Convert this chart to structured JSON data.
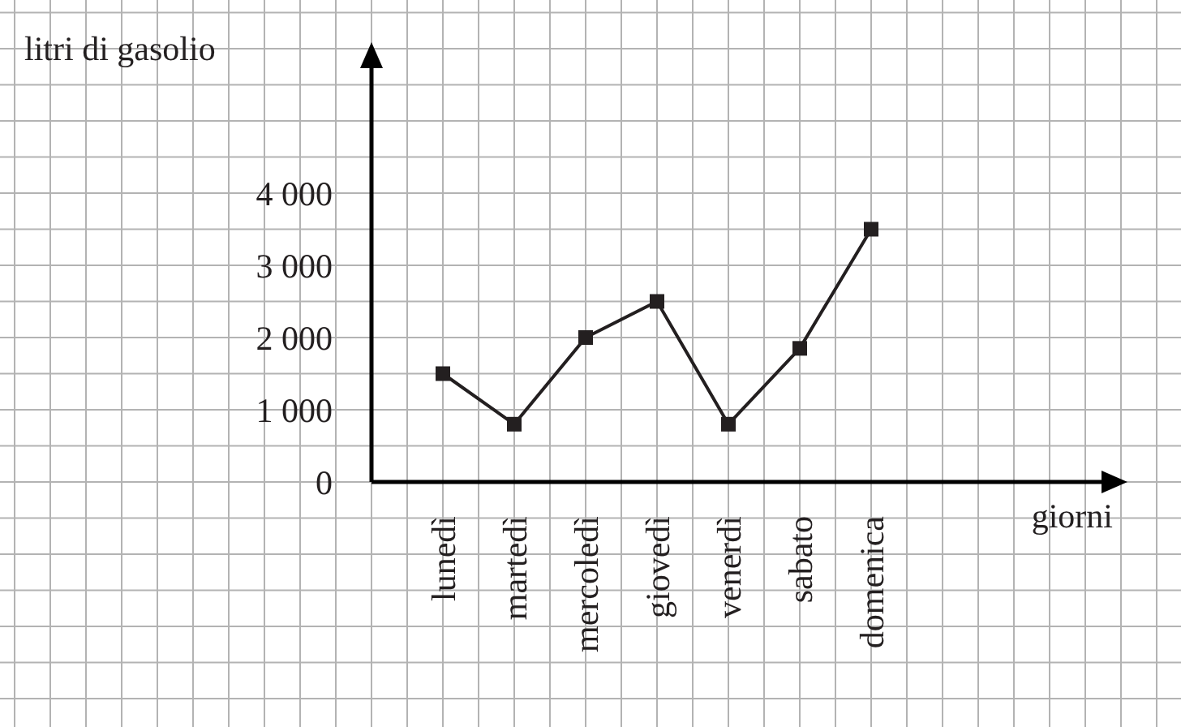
{
  "chart_data": {
    "type": "line",
    "xlabel": "giorni",
    "ylabel": "litri di gasolio",
    "categories": [
      "lunedì",
      "martedì",
      "mercoledì",
      "giovedì",
      "venerdì",
      "sabato",
      "domenica"
    ],
    "series": [
      {
        "color": "#231f20",
        "values": [
          1500,
          800,
          2000,
          2500,
          800,
          1850,
          3500
        ]
      }
    ],
    "ylim": [
      0,
      6000
    ],
    "yticks": [
      0,
      {
        "value": 500,
        "label": null
      },
      {
        "value": 1000,
        "label": "1 000"
      },
      {
        "value": 1500,
        "label": null
      },
      {
        "value": 2000,
        "label": "2 000"
      },
      {
        "value": 2500,
        "label": null
      },
      {
        "value": 3000,
        "label": "3 000"
      },
      {
        "value": 3500,
        "label": null
      },
      {
        "value": 4000,
        "label": "4 000"
      }
    ],
    "grid": true,
    "marker": "square",
    "line_style": "solid"
  }
}
